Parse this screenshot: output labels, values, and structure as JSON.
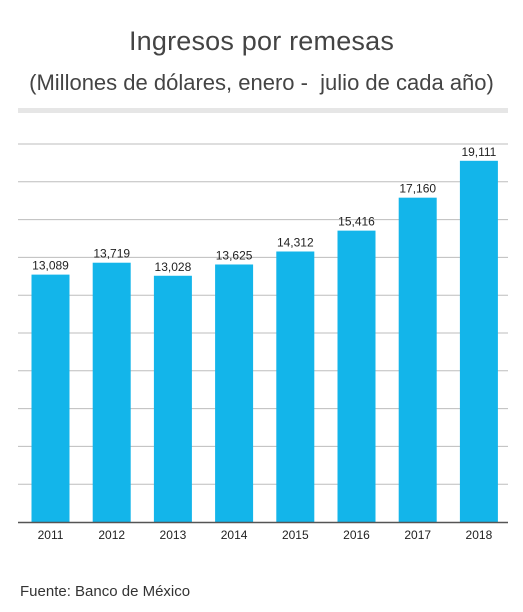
{
  "title": "Ingresos por remesas",
  "subtitle": "(Millones de dólares, enero -  julio de cada año)",
  "source": "Fuente: Banco de México",
  "colors": {
    "bar": "#13b5ea",
    "grid": "#bdbdbd",
    "axis": "#555555",
    "text": "#222222"
  },
  "chart_data": {
    "type": "bar",
    "title": "Ingresos por remesas",
    "subtitle": "(Millones de dólares, enero -  julio de cada año)",
    "categories": [
      "2011",
      "2012",
      "2013",
      "2014",
      "2015",
      "2016",
      "2017",
      "2018"
    ],
    "values": [
      13089,
      13719,
      13028,
      13625,
      14312,
      15416,
      17160,
      19111
    ],
    "value_labels": [
      "13,089",
      "13,719",
      "13,028",
      "13,625",
      "14,312",
      "15,416",
      "17,160",
      "19,111"
    ],
    "xlabel": "",
    "ylabel": "",
    "ylim": [
      0,
      20000
    ],
    "grid": true,
    "legend": "none"
  }
}
